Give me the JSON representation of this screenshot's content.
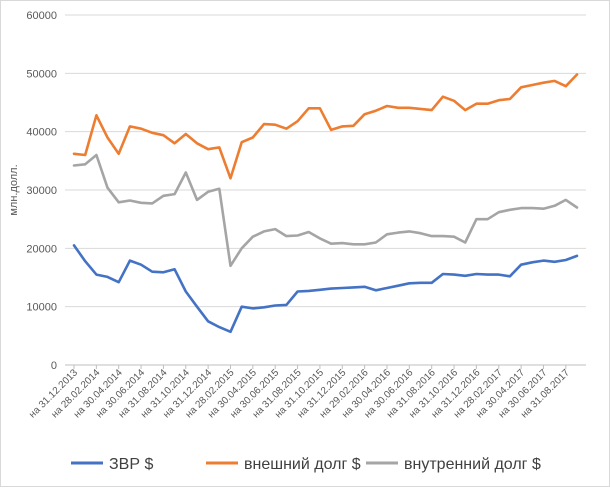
{
  "chart_data": {
    "type": "line",
    "ylabel": "млн.долл.",
    "ylim": [
      0,
      60000
    ],
    "yticks": [
      0,
      10000,
      20000,
      30000,
      40000,
      50000,
      60000
    ],
    "x_tick_labels": [
      "на 31.12.2013",
      "на 28.02.2014",
      "на 30.04.2014",
      "на 30.06.2014",
      "на 31.08.2014",
      "на 31.10.2014",
      "на 31.12.2014",
      "на 28.02.2015",
      "на 30.04.2015",
      "на 30.06.2015",
      "на 31.08.2015",
      "на 31.10.2015",
      "на 31.12.2015",
      "на 29.02.2016",
      "на 30.04.2016",
      "на 30.06.2016",
      "на 31.08.2016",
      "на 31.10.2016",
      "на 31.12.2016",
      "на 28.02.2017",
      "на 30.04.2017",
      "на 30.06.2017",
      "на 31.08.2017"
    ],
    "grid": true,
    "legend_position": "bottom",
    "series": [
      {
        "name": "ЗВР $",
        "color": "#4472C4",
        "values": [
          20500,
          17800,
          15500,
          15100,
          14200,
          17900,
          17200,
          16000,
          15900,
          16400,
          12600,
          10000,
          7500,
          6500,
          5700,
          10000,
          9700,
          9900,
          10200,
          10300,
          12600,
          12700,
          12900,
          13100,
          13200,
          13300,
          13400,
          12800,
          13200,
          13600,
          14000,
          14100,
          14100,
          15600,
          15500,
          15300,
          15600,
          15500,
          15500,
          15200,
          17200,
          17600,
          17900,
          17700,
          18000,
          18700
        ]
      },
      {
        "name": "внешний долг $",
        "color": "#ED7D31",
        "values": [
          36200,
          36000,
          42800,
          39000,
          36200,
          40900,
          40500,
          39800,
          39400,
          38000,
          39600,
          38000,
          37000,
          37300,
          32000,
          38200,
          39000,
          41300,
          41200,
          40500,
          41800,
          44000,
          44000,
          40300,
          40900,
          41000,
          43000,
          43600,
          44400,
          44100,
          44100,
          43900,
          43700,
          46000,
          45300,
          43700,
          44800,
          44800,
          45400,
          45600,
          47600,
          48000,
          48400,
          48700,
          47800,
          49800
        ]
      },
      {
        "name": "внутренний долг $",
        "color": "#A5A5A5",
        "values": [
          34200,
          34400,
          36000,
          30400,
          27900,
          28200,
          27800,
          27700,
          29000,
          29300,
          33000,
          28300,
          29700,
          30200,
          17000,
          20000,
          22000,
          22900,
          23300,
          22100,
          22200,
          22800,
          21700,
          20800,
          20900,
          20700,
          20700,
          21000,
          22400,
          22700,
          22900,
          22600,
          22100,
          22100,
          22000,
          21000,
          25000,
          25000,
          26200,
          26600,
          26900,
          26900,
          26800,
          27300,
          28300,
          27000
        ]
      }
    ]
  }
}
